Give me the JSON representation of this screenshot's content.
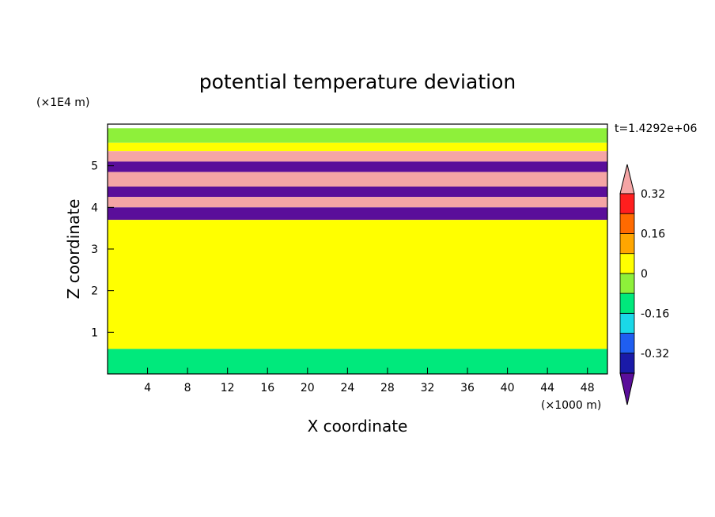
{
  "chart_data": {
    "type": "heatmap",
    "title": "potential temperature deviation",
    "xlabel": "X coordinate",
    "ylabel": "Z coordinate",
    "x_unit": "(×1000 m)",
    "y_unit": "(×1E4 m)",
    "time_label": "t=1.4292e+06",
    "xlim": [
      0,
      50
    ],
    "ylim": [
      0,
      6
    ],
    "x_ticks": [
      4,
      8,
      12,
      16,
      20,
      24,
      28,
      32,
      36,
      40,
      44,
      48
    ],
    "y_ticks": [
      1,
      2,
      3,
      4,
      5
    ],
    "colorbar": {
      "levels": [
        -0.4,
        -0.32,
        -0.24,
        -0.16,
        -0.08,
        0,
        0.08,
        0.16,
        0.24,
        0.32,
        0.4
      ],
      "tick_labels": [
        "0.32",
        "0.16",
        "0",
        "-0.16",
        "-0.32"
      ],
      "tick_values": [
        0.32,
        0.16,
        0,
        -0.16,
        -0.32
      ],
      "colors": [
        "#5a0e9a",
        "#1a1aa8",
        "#1f5ef0",
        "#1ad8e8",
        "#00e97c",
        "#8ef03a",
        "#ffff00",
        "#ffa600",
        "#ff6a00",
        "#ff1e1e",
        "#f5a5a5"
      ],
      "extend": "both"
    },
    "bands": [
      {
        "z": [
          5.55,
          5.9
        ],
        "value": -0.04
      },
      {
        "z": [
          5.35,
          5.55
        ],
        "value": 0.02
      },
      {
        "z": [
          5.1,
          5.35
        ],
        "value": 0.45
      },
      {
        "z": [
          4.85,
          5.1
        ],
        "value": -0.45
      },
      {
        "z": [
          4.5,
          4.85
        ],
        "value": 0.45
      },
      {
        "z": [
          4.25,
          4.5
        ],
        "value": -0.45
      },
      {
        "z": [
          4.0,
          4.25
        ],
        "value": 0.45
      },
      {
        "z": [
          3.7,
          4.0
        ],
        "value": -0.45
      },
      {
        "z": [
          0.6,
          3.7
        ],
        "value": 0.0
      },
      {
        "z": [
          0.0,
          0.6
        ],
        "value": -0.1
      }
    ]
  }
}
